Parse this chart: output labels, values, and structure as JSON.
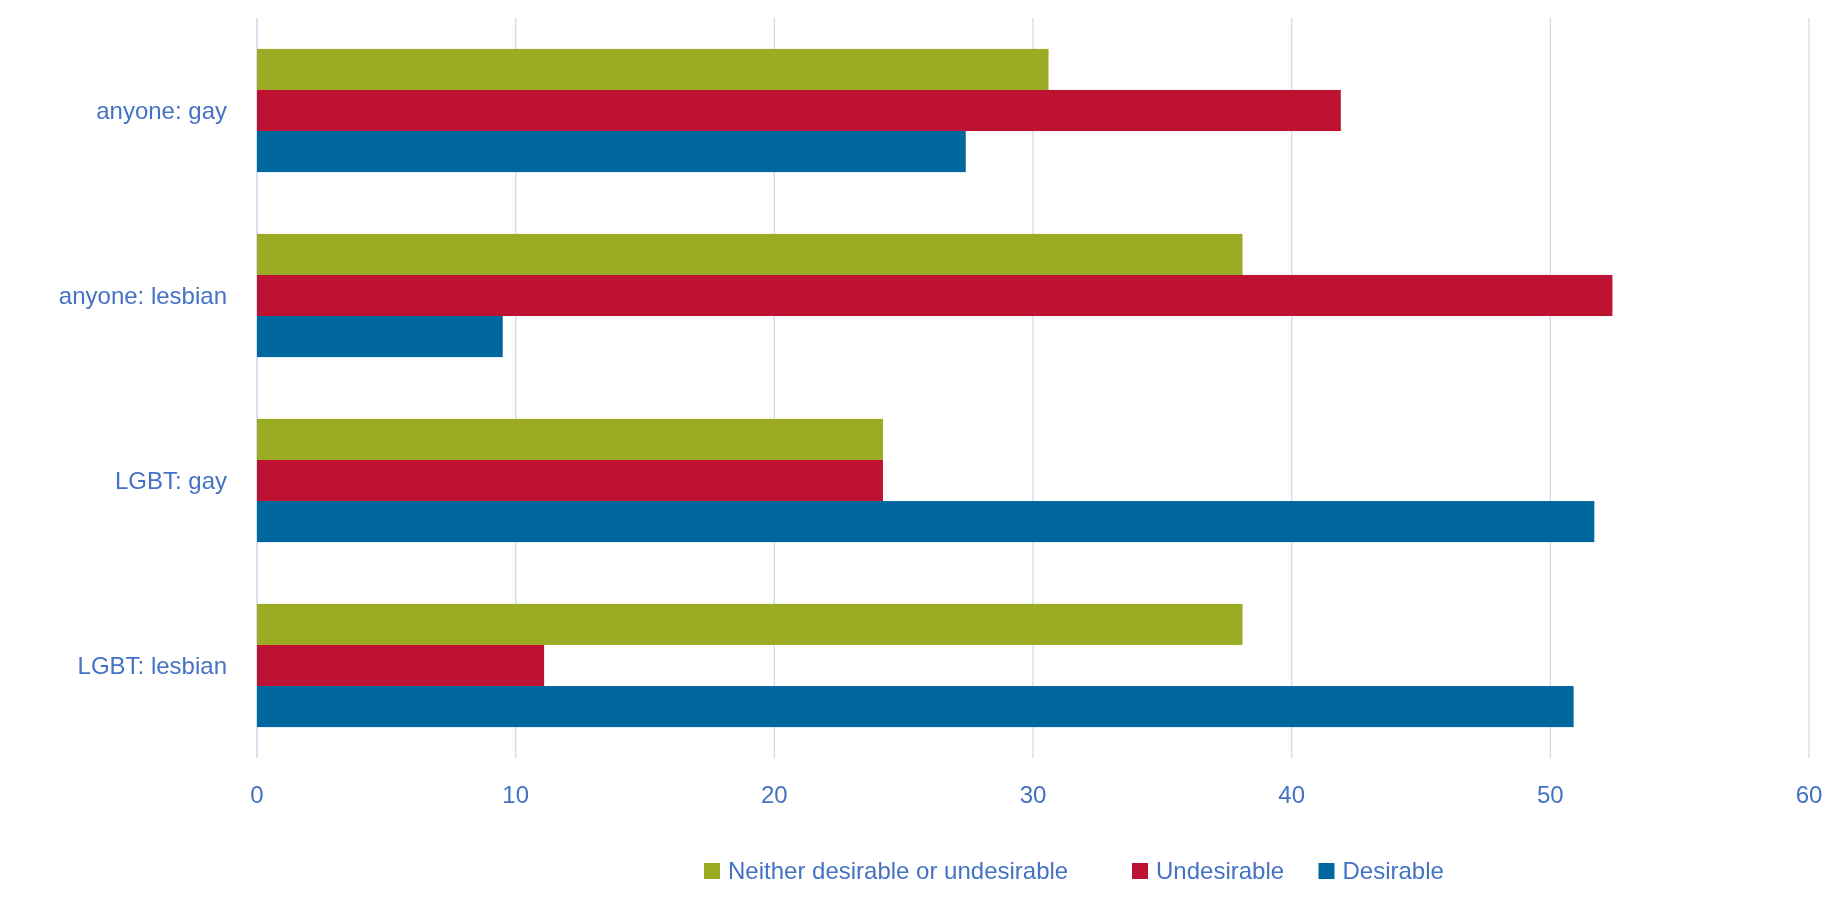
{
  "chart_data": {
    "type": "bar",
    "orientation": "horizontal",
    "categories": [
      "anyone: gay",
      "anyone: lesbian",
      "LGBT: gay",
      "LGBT: lesbian"
    ],
    "series": [
      {
        "name": "Neither desirable or undesirable",
        "color": "#9bab24",
        "values": [
          30.6,
          38.1,
          24.2,
          38.1
        ]
      },
      {
        "name": "Undesirable",
        "color": "#be1232",
        "values": [
          41.9,
          52.4,
          24.2,
          11.1
        ]
      },
      {
        "name": "Desirable",
        "color": "#00689f",
        "values": [
          27.4,
          9.5,
          51.7,
          50.9
        ]
      }
    ],
    "xlim": [
      0,
      60
    ],
    "xticks": [
      0,
      10,
      20,
      30,
      40,
      50,
      60
    ],
    "grid": "x",
    "legend": "bottom"
  }
}
